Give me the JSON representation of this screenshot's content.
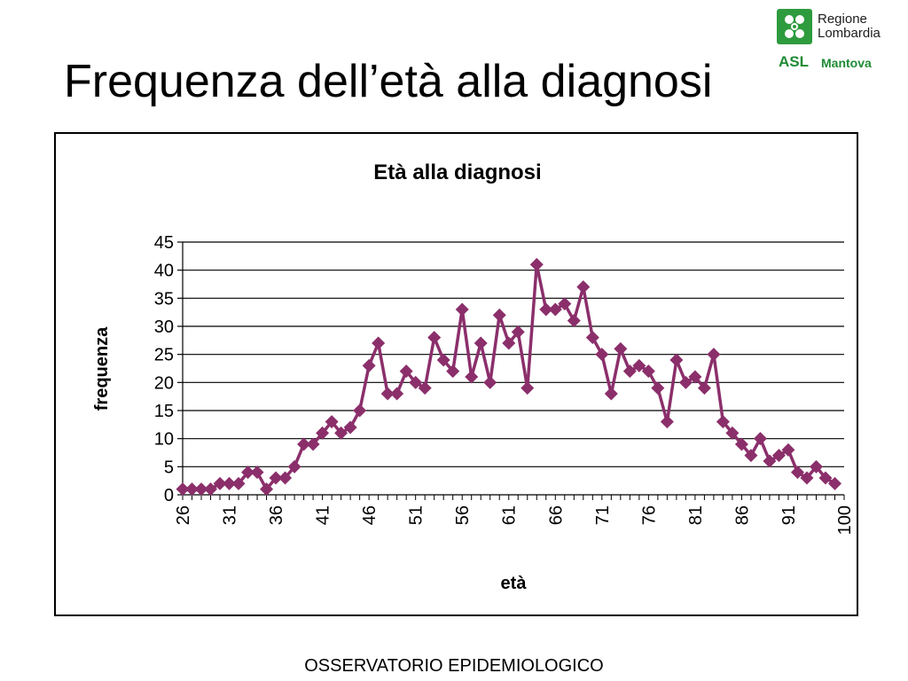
{
  "slide": {
    "title": "Frequenza dell’età alla diagnosi",
    "footer": "OSSERVATORIO EPIDEMIOLOGICO"
  },
  "logo": {
    "line1": "Regione",
    "line2": "Lombardia",
    "asl": "ASL",
    "city": "Mantova",
    "brand_color": "#2e9b3e"
  },
  "chart_data": {
    "type": "line",
    "title": "Età alla diagnosi",
    "xlabel": "età",
    "ylabel": "frequenza",
    "ylim": [
      0,
      45
    ],
    "yticks": [
      0,
      5,
      10,
      15,
      20,
      25,
      30,
      35,
      40,
      45
    ],
    "x_tick_labels": [
      "26",
      "31",
      "36",
      "41",
      "46",
      "51",
      "56",
      "61",
      "66",
      "71",
      "76",
      "81",
      "86",
      "91",
      "100"
    ],
    "grid": "horizontal",
    "legend": "none",
    "series_color": "#8b2f6b",
    "marker": "diamond",
    "series": [
      {
        "x": [
          26,
          27,
          28,
          29,
          30,
          31,
          32,
          33,
          34,
          35,
          36,
          37,
          38,
          39,
          40,
          41,
          42,
          43,
          44,
          45,
          46,
          47,
          48,
          49,
          50,
          51,
          52,
          53,
          54,
          55,
          56,
          57,
          58,
          59,
          60,
          61,
          62,
          63,
          64,
          65,
          66,
          67,
          68,
          69,
          70,
          71,
          72,
          73,
          74,
          75,
          76,
          77,
          78,
          79,
          80,
          81,
          82,
          83,
          84,
          85,
          86,
          87,
          88,
          89,
          90,
          91,
          92,
          93,
          94,
          95,
          96,
          97
        ],
        "values": [
          1,
          1,
          1,
          1,
          2,
          2,
          2,
          4,
          4,
          1,
          3,
          3,
          5,
          9,
          9,
          11,
          13,
          11,
          12,
          15,
          23,
          27,
          18,
          18,
          22,
          20,
          19,
          28,
          24,
          22,
          33,
          21,
          27,
          20,
          32,
          27,
          29,
          19,
          41,
          33,
          33,
          34,
          31,
          37,
          28,
          25,
          18,
          26,
          22,
          23,
          22,
          19,
          13,
          24,
          20,
          21,
          19,
          25,
          13,
          11,
          9,
          7,
          10,
          6,
          7,
          8,
          4,
          3,
          5,
          3,
          2,
          null
        ]
      }
    ]
  }
}
